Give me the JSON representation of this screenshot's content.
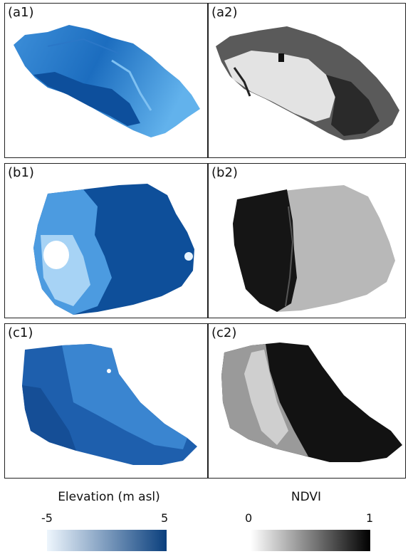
{
  "panels": {
    "a1": "(a1)",
    "a2": "(a2)",
    "b1": "(b1)",
    "b2": "(b2)",
    "c1": "(c1)",
    "c2": "(c2)"
  },
  "colorbars": {
    "elevation": {
      "title": "Elevation (m asl)",
      "min": "-5",
      "max": "5",
      "gradient": [
        "#eef6fd",
        "#0a3f7d"
      ]
    },
    "ndvi": {
      "title": "NDVI",
      "min": "0",
      "max": "1",
      "gradient": [
        "#ffffff",
        "#000000"
      ]
    }
  }
}
